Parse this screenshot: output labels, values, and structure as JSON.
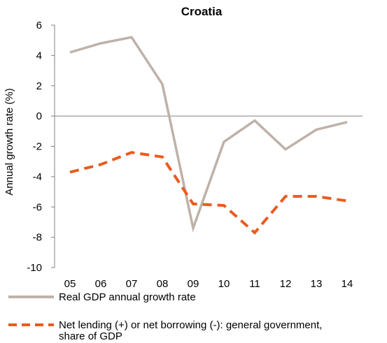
{
  "chart_data": {
    "type": "line",
    "title": "Croatia",
    "xlabel": "",
    "ylabel": "Annual growth rate (%)",
    "categories": [
      "05",
      "06",
      "07",
      "08",
      "09",
      "10",
      "11",
      "12",
      "13",
      "14"
    ],
    "ylim": [
      -10,
      6
    ],
    "yticks": [
      6,
      4,
      2,
      0,
      -2,
      -4,
      -6,
      -8,
      -10
    ],
    "grid": false,
    "legend_position": "bottom",
    "series": [
      {
        "name": "Real GDP annual growth rate",
        "values": [
          4.2,
          4.8,
          5.2,
          2.1,
          -7.4,
          -1.7,
          -0.3,
          -2.2,
          -0.9,
          -0.4
        ],
        "color": "#bfb1a8",
        "style": "solid"
      },
      {
        "name": "Net lending (+) or net borrowing (-): general government, share of GDP",
        "values": [
          -3.7,
          -3.2,
          -2.4,
          -2.7,
          -5.8,
          -5.9,
          -7.7,
          -5.3,
          -5.3,
          -5.6
        ],
        "color": "#ec5a1f",
        "style": "dashed"
      }
    ],
    "legend": {
      "line1": "Real GDP annual growth rate",
      "line2a": "Net lending (+) or net borrowing (-): general government,",
      "line2b": "share of GDP"
    }
  }
}
